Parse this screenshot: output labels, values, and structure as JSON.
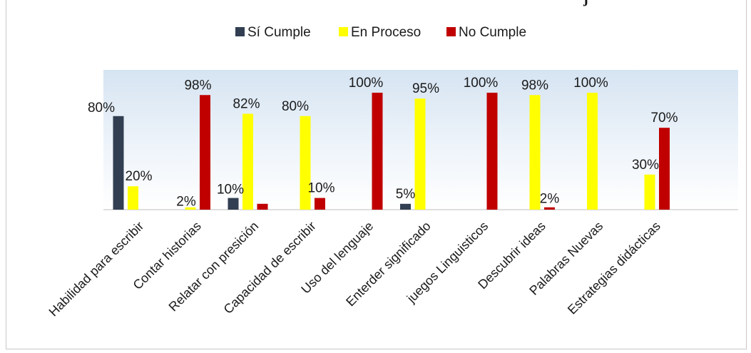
{
  "chart_data": {
    "type": "bar",
    "categories": [
      "Habilidad para escribir",
      "Contar historias",
      "Relatar con presición",
      "Capacidad de escribir",
      "Uso del lenguaje",
      "Enterder significado",
      "juegos Linguisticos",
      "Descubrir ideas",
      "Palabras Nuevas",
      "Estrategias didácticas"
    ],
    "series": [
      {
        "name": "Sí Cumple",
        "color": "#323f52",
        "values": [
          80,
          null,
          10,
          null,
          null,
          5,
          null,
          null,
          null,
          null
        ],
        "labels": [
          "80%",
          "",
          "10%",
          "",
          "",
          "5%",
          "",
          "",
          "",
          ""
        ]
      },
      {
        "name": "En Proceso",
        "color": "#ffff00",
        "values": [
          20,
          2,
          82,
          80,
          null,
          95,
          null,
          98,
          100,
          30
        ],
        "labels": [
          "20%",
          "2%",
          "82%",
          "80%",
          "",
          "95%",
          "",
          "98%",
          "100%",
          "30%"
        ]
      },
      {
        "name": "No Cumple",
        "color": "#c00000",
        "values": [
          null,
          98,
          5,
          10,
          100,
          null,
          100,
          2,
          null,
          70
        ],
        "labels": [
          "",
          "98%",
          "",
          "10%",
          "100%",
          "",
          "100%",
          "2%",
          "",
          "70%"
        ]
      }
    ],
    "ylim": [
      0,
      100
    ],
    "grid": false,
    "legend_position": "top",
    "title": "",
    "xlabel": "",
    "ylabel": "",
    "header_fragment": "j"
  }
}
